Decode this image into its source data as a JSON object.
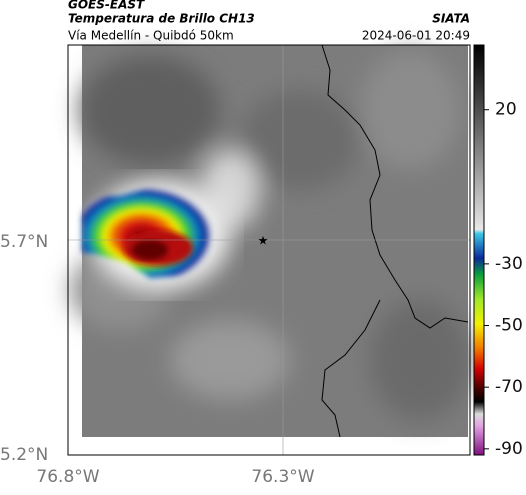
{
  "header": {
    "title": "GOES-EAST",
    "subtitle": "Temperatura de Brillo CH13",
    "location": "Vía Medellín - Quibdó 50km",
    "source": "SIATA",
    "datetime": "2024-06-01 20:49"
  },
  "map": {
    "lat_labels": [
      "5.7°N",
      "5.2°N"
    ],
    "lon_labels": [
      "76.8°W",
      "76.3°W"
    ]
  },
  "colorbar": {
    "range": [
      -92,
      41
    ],
    "ticks": [
      20,
      -30,
      -50,
      -70,
      -90
    ]
  }
}
